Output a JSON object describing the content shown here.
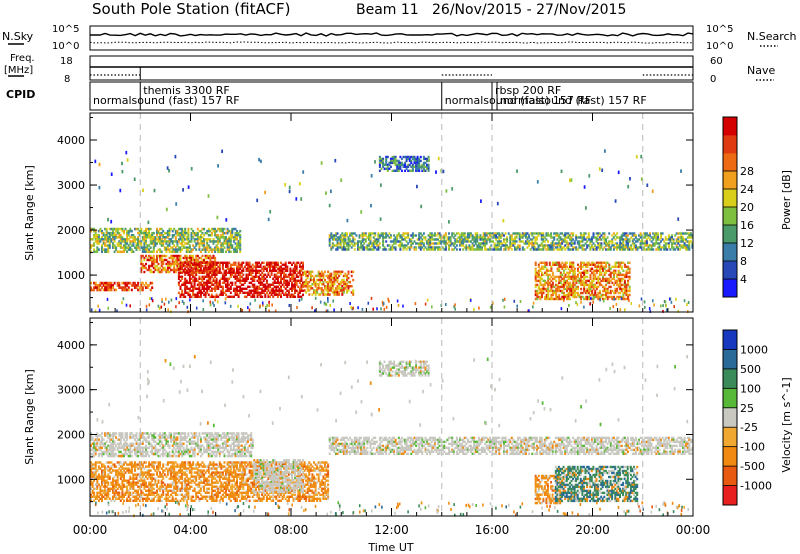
{
  "header": {
    "station": "South Pole Station (fitACF)",
    "beam": "Beam 11",
    "dates": "26/Nov/2015 - 27/Nov/2015"
  },
  "summary": {
    "nsky_label": "N.Sky",
    "freq_label_1": "Freq.",
    "freq_label_2": "[MHz]",
    "cpid_label": "CPID",
    "nsearch_label": "N.Search",
    "nave_label": "Nave",
    "nsky_ticks": [
      "10^5",
      "10^0"
    ],
    "nsearch_ticks": [
      "10^5",
      "10^0"
    ],
    "freq_ticks": [
      "18",
      "8"
    ],
    "nave_ticks": [
      "60",
      "0"
    ],
    "cpid_segments": [
      {
        "t_start": 0.0,
        "t_end": 2.0,
        "label": "normalsound (fast) 157 RF",
        "row": 2
      },
      {
        "t_start": 2.0,
        "t_end": 14.0,
        "label": "themis 3300 RF",
        "row": 1
      },
      {
        "t_start": 14.0,
        "t_end": 16.0,
        "label": "normalsound (fast) 157 RF",
        "row": 2
      },
      {
        "t_start": 16.0,
        "t_end": 17.3,
        "label": "rbsp 200 RF",
        "row": 1
      },
      {
        "t_start": 16.2,
        "t_end": 22.0,
        "label": "normalsound (fast) 157 RF",
        "row": 2
      }
    ]
  },
  "chart_data": [
    {
      "type": "heatmap",
      "panel": "power",
      "ylabel": "Slant Range [km]",
      "xlim": [
        0,
        24
      ],
      "ylim": [
        180,
        4600
      ],
      "yticks": [
        1000,
        2000,
        3000,
        4000
      ],
      "colorbar_label": "Power [dB]",
      "colorbar_ticks": [
        "4",
        "8",
        "12",
        "16",
        "20",
        "24",
        "28"
      ],
      "colorbar_colors": [
        "#1a1aff",
        "#2848b8",
        "#3a7da8",
        "#4a9a6a",
        "#7fbf3f",
        "#d9cf1a",
        "#f0a01c",
        "#ee6a12",
        "#e03a10",
        "#d40000"
      ],
      "bands": [
        {
          "t_start": 0.0,
          "t_end": 6.0,
          "r_start": 1500,
          "r_end": 2050,
          "level": 0.45
        },
        {
          "t_start": 2.0,
          "t_end": 5.0,
          "r_start": 1050,
          "r_end": 1450,
          "level": 0.75
        },
        {
          "t_start": 0.0,
          "t_end": 2.5,
          "r_start": 650,
          "r_end": 850,
          "level": 0.85
        },
        {
          "t_start": 3.5,
          "t_end": 8.5,
          "r_start": 500,
          "r_end": 1300,
          "level": 0.95
        },
        {
          "t_start": 8.5,
          "t_end": 10.5,
          "r_start": 550,
          "r_end": 1100,
          "level": 0.7
        },
        {
          "t_start": 9.5,
          "t_end": 24.0,
          "r_start": 1550,
          "r_end": 1950,
          "level": 0.4
        },
        {
          "t_start": 11.5,
          "t_end": 13.5,
          "r_start": 3300,
          "r_end": 3650,
          "level": 0.25
        },
        {
          "t_start": 17.7,
          "t_end": 21.5,
          "r_start": 450,
          "r_end": 1300,
          "level": 0.7
        }
      ]
    },
    {
      "type": "heatmap",
      "panel": "velocity",
      "xlabel": "Time UT",
      "ylabel": "Slant Range [km]",
      "xlim": [
        0,
        24
      ],
      "ylim": [
        180,
        4600
      ],
      "yticks": [
        1000,
        2000,
        3000,
        4000
      ],
      "xticks": [
        "00:00",
        "04:00",
        "08:00",
        "12:00",
        "16:00",
        "20:00",
        "00:00"
      ],
      "colorbar_label": "Velocity [m s^-1]",
      "colorbar_ticks": [
        "-1000",
        "-500",
        "-100",
        "-25",
        "25",
        "100",
        "500",
        "1000"
      ],
      "colorbar_colors": [
        "#e82020",
        "#e85a10",
        "#f08a10",
        "#f0a830",
        "#c8c8c0",
        "#58b838",
        "#3a8a5a",
        "#2a6a98",
        "#1838c0"
      ],
      "bands": [
        {
          "t_start": 0.0,
          "t_end": 6.5,
          "r_start": 1500,
          "r_end": 2050,
          "class": "zero"
        },
        {
          "t_start": 0.0,
          "t_end": 9.5,
          "r_start": 500,
          "r_end": 1400,
          "class": "neg"
        },
        {
          "t_start": 6.5,
          "t_end": 8.5,
          "r_start": 700,
          "r_end": 1450,
          "class": "zero"
        },
        {
          "t_start": 9.5,
          "t_end": 24.0,
          "r_start": 1550,
          "r_end": 1950,
          "class": "zero"
        },
        {
          "t_start": 11.5,
          "t_end": 13.5,
          "r_start": 3300,
          "r_end": 3650,
          "class": "zero"
        },
        {
          "t_start": 17.7,
          "t_end": 18.8,
          "r_start": 450,
          "r_end": 1100,
          "class": "neg"
        },
        {
          "t_start": 18.5,
          "t_end": 21.8,
          "r_start": 500,
          "r_end": 1300,
          "class": "pos"
        }
      ]
    }
  ]
}
